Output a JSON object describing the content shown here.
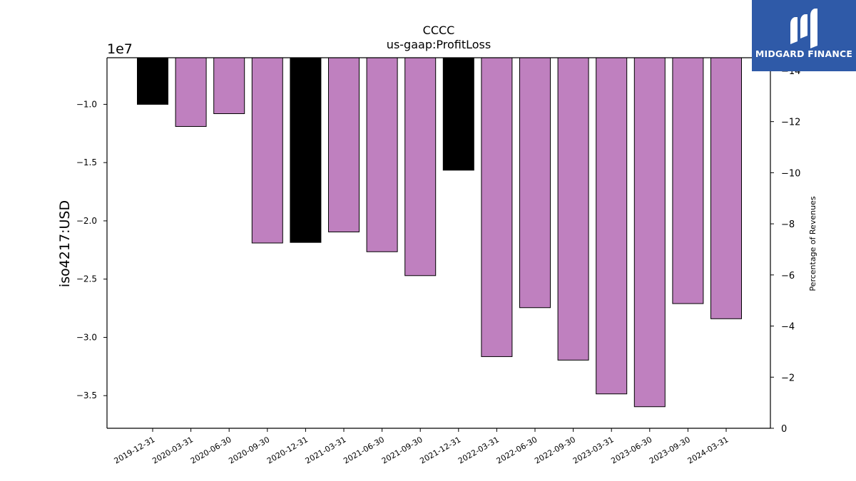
{
  "chart_data": {
    "type": "bar",
    "title": "CCCC",
    "subtitle": "us-gaap:ProfitLoss",
    "ylabel": "iso4217:USD",
    "y_offset_label": "1e7",
    "y2label": "Percentage of Revenues",
    "categories": [
      "2019-12-31",
      "2020-03-31",
      "2020-06-30",
      "2020-09-30",
      "2020-12-31",
      "2021-03-31",
      "2021-06-30",
      "2021-09-30",
      "2021-12-31",
      "2022-03-31",
      "2022-06-30",
      "2022-09-30",
      "2023-03-31",
      "2023-06-30",
      "2023-09-30",
      "2024-03-31"
    ],
    "values": [
      -10000000,
      -11900000,
      -10800000,
      -21900000,
      -21850000,
      -20950000,
      -22650000,
      -24700000,
      -15650000,
      -31650000,
      -27450000,
      -31950000,
      -34850000,
      -35950000,
      -27100000,
      -28400000
    ],
    "colors": [
      "#000000",
      "#bf80bf",
      "#bf80bf",
      "#bf80bf",
      "#000000",
      "#bf80bf",
      "#bf80bf",
      "#bf80bf",
      "#000000",
      "#bf80bf",
      "#bf80bf",
      "#bf80bf",
      "#bf80bf",
      "#bf80bf",
      "#bf80bf",
      "#bf80bf"
    ],
    "ylim": [
      -37800000,
      -6000000
    ],
    "yticks": [
      -10000000,
      -15000000,
      -20000000,
      -25000000,
      -30000000,
      -35000000
    ],
    "ytick_labels": [
      "−1.0",
      "−1.5",
      "−2.0",
      "−2.5",
      "−3.0",
      "−3.5"
    ],
    "y2lim": [
      0,
      14.5
    ],
    "y2ticks": [
      0,
      2,
      4,
      6,
      8,
      10,
      12,
      14
    ],
    "y2tick_labels": [
      "0",
      "−2",
      "−4",
      "−6",
      "−8",
      "−10",
      "−12",
      "−14"
    ],
    "grid": false,
    "legend": "none"
  },
  "logo": {
    "text": "MIDGARD FINANCE",
    "background": "#2f5aa8"
  }
}
